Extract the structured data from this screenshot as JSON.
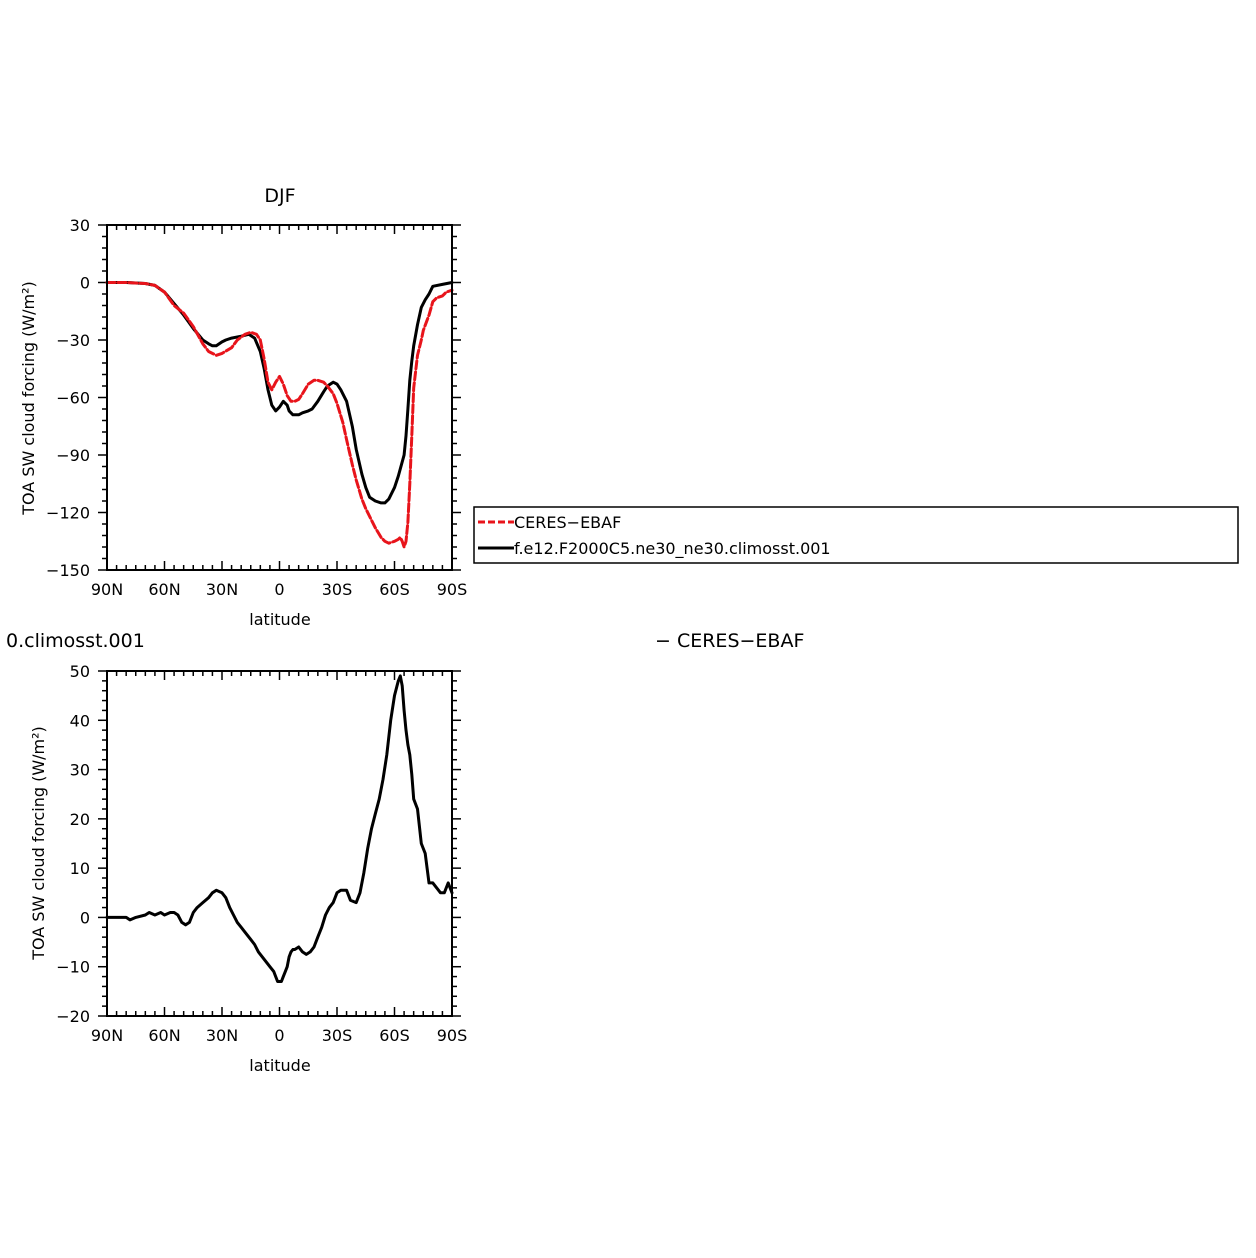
{
  "legend": {
    "entries": [
      {
        "label": "CERES−EBAF",
        "color": "#e8141b",
        "style": "dashed"
      },
      {
        "label": "f.e12.F2000C5.ne30_ne30.climosst.001",
        "color": "#000000",
        "style": "solid"
      }
    ]
  },
  "chart_data": [
    {
      "type": "line",
      "title": "DJF",
      "xlabel": "latitude",
      "ylabel": "TOA SW cloud forcing (W/m²)",
      "xlim": [
        -90,
        90
      ],
      "ylim": [
        -150,
        30
      ],
      "x_ticks": [
        -90,
        -60,
        -30,
        0,
        30,
        60,
        90
      ],
      "x_tick_labels": [
        "90N",
        "60N",
        "30N",
        "0",
        "30S",
        "60S",
        "90S"
      ],
      "y_ticks": [
        -150,
        -120,
        -90,
        -60,
        -30,
        0,
        30
      ],
      "y_tick_labels": [
        "−150",
        "−120",
        "−90",
        "−60",
        "−30",
        "0",
        "30"
      ],
      "series": [
        {
          "name": "CERES−EBAF",
          "color": "#e8141b",
          "dash": "dashed",
          "x": [
            -90,
            -80,
            -70,
            -65,
            -60,
            -55,
            -50,
            -45,
            -40,
            -37,
            -33,
            -30,
            -25,
            -22,
            -18,
            -15,
            -12,
            -10,
            -8,
            -6,
            -4,
            -2,
            0,
            2,
            4,
            6,
            8,
            10,
            12,
            15,
            18,
            20,
            23,
            25,
            28,
            30,
            33,
            35,
            38,
            40,
            43,
            45,
            48,
            50,
            53,
            55,
            57,
            60,
            62,
            63,
            64,
            65,
            66,
            67,
            68,
            69,
            70,
            72,
            74,
            75,
            78,
            80,
            82,
            85,
            87,
            90
          ],
          "values": [
            0,
            0,
            -0.5,
            -1.5,
            -5,
            -12,
            -16,
            -23,
            -32,
            -36,
            -38,
            -37,
            -34,
            -30,
            -27,
            -26,
            -27,
            -30,
            -40,
            -52,
            -56,
            -52,
            -49,
            -53,
            -59,
            -62,
            -62,
            -61,
            -58,
            -53,
            -51,
            -51,
            -52,
            -54,
            -58,
            -63,
            -73,
            -82,
            -95,
            -103,
            -113,
            -118,
            -124,
            -128,
            -133,
            -135,
            -136,
            -135,
            -134,
            -133,
            -135,
            -138,
            -135,
            -125,
            -105,
            -80,
            -55,
            -38,
            -30,
            -25,
            -17,
            -10,
            -8,
            -7,
            -5,
            -4
          ]
        },
        {
          "name": "f.e12.F2000C5.ne30_ne30.climosst.001",
          "color": "#000000",
          "dash": "solid",
          "x": [
            -90,
            -80,
            -70,
            -65,
            -60,
            -55,
            -50,
            -45,
            -40,
            -37,
            -35,
            -33,
            -30,
            -28,
            -25,
            -20,
            -16,
            -13,
            -10,
            -8,
            -6,
            -4,
            -2,
            0,
            2,
            4,
            5,
            7,
            8,
            10,
            12,
            15,
            17,
            20,
            23,
            25,
            28,
            30,
            32,
            35,
            38,
            40,
            43,
            45,
            47,
            50,
            53,
            55,
            57,
            60,
            62,
            65,
            66,
            67,
            68,
            69,
            70,
            72,
            74,
            76,
            78,
            80,
            85,
            90
          ],
          "values": [
            0,
            0,
            -0.5,
            -1.5,
            -5,
            -11,
            -17,
            -24,
            -30,
            -32,
            -33,
            -33,
            -31,
            -30,
            -29,
            -28,
            -27,
            -29,
            -36,
            -45,
            -56,
            -64,
            -67,
            -65,
            -62,
            -64,
            -67,
            -69,
            -69,
            -69,
            -68,
            -67,
            -66,
            -62,
            -57,
            -54,
            -52,
            -53,
            -56,
            -62,
            -75,
            -87,
            -100,
            -107,
            -112,
            -114,
            -115,
            -115,
            -113,
            -107,
            -101,
            -90,
            -80,
            -66,
            -51,
            -41,
            -33,
            -22,
            -13,
            -9,
            -6,
            -2,
            -1,
            0
          ]
        }
      ]
    },
    {
      "type": "line",
      "title": "0.climosst.001",
      "title_right": "− CERES−EBAF",
      "xlabel": "latitude",
      "ylabel": "TOA SW cloud forcing (W/m²)",
      "xlim": [
        -90,
        90
      ],
      "ylim": [
        -20,
        50
      ],
      "x_ticks": [
        -90,
        -60,
        -30,
        0,
        30,
        60,
        90
      ],
      "x_tick_labels": [
        "90N",
        "60N",
        "30N",
        "0",
        "30S",
        "60S",
        "90S"
      ],
      "y_ticks": [
        -20,
        -10,
        0,
        10,
        20,
        30,
        40,
        50
      ],
      "y_tick_labels": [
        "−20",
        "−10",
        "0",
        "10",
        "20",
        "30",
        "40",
        "50"
      ],
      "series": [
        {
          "color": "#000000",
          "dash": "solid",
          "x": [
            -90,
            -85,
            -80,
            -78,
            -75,
            -70,
            -68,
            -65,
            -62,
            -60,
            -57,
            -55,
            -53,
            -51,
            -49,
            -47,
            -45,
            -43,
            -40,
            -37,
            -35,
            -33,
            -30,
            -28,
            -26,
            -24,
            -22,
            -20,
            -18,
            -15,
            -13,
            -11,
            -9,
            -7,
            -5,
            -3,
            -2,
            -1,
            0,
            1,
            2,
            3,
            4,
            5,
            6,
            7,
            8,
            10,
            12,
            14,
            16,
            18,
            20,
            22,
            24,
            26,
            28,
            30,
            32,
            35,
            37,
            40,
            42,
            44,
            46,
            48,
            50,
            52,
            54,
            56,
            58,
            60,
            62,
            63,
            64,
            65,
            66,
            67,
            68,
            69,
            70,
            72,
            74,
            76,
            78,
            80,
            82,
            84,
            86,
            88,
            89,
            90
          ],
          "values": [
            0,
            0,
            0,
            -0.5,
            0,
            0.5,
            1,
            0.5,
            1,
            0.5,
            1,
            1,
            0.5,
            -1,
            -1.5,
            -1,
            1,
            2,
            3,
            4,
            5,
            5.5,
            5,
            4,
            2,
            0.5,
            -1,
            -2,
            -3,
            -4.5,
            -5.5,
            -7,
            -8,
            -9,
            -10,
            -11,
            -12,
            -13,
            -13,
            -13,
            -12,
            -11,
            -10,
            -8,
            -7,
            -6.5,
            -6.5,
            -6,
            -7,
            -7.5,
            -7,
            -6,
            -4,
            -2,
            0.5,
            2,
            3,
            5,
            5.5,
            5.5,
            3.5,
            3,
            5,
            9,
            14,
            18,
            21,
            24,
            28,
            33,
            40,
            45,
            48,
            49,
            47,
            42,
            38,
            35,
            33,
            29,
            24,
            22,
            15,
            13,
            7,
            7,
            6,
            5,
            5,
            7,
            6,
            5
          ]
        }
      ]
    }
  ]
}
